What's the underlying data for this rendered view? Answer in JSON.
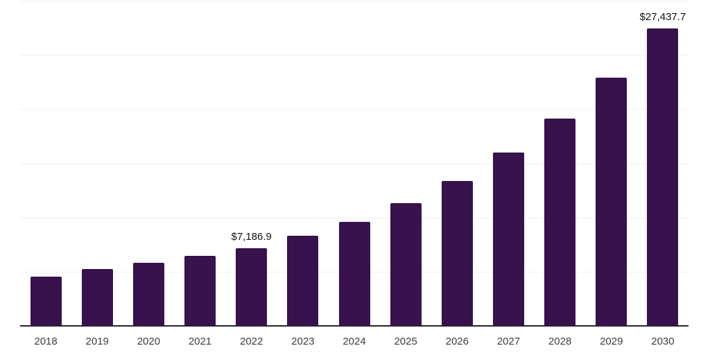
{
  "chart_data": {
    "type": "bar",
    "title": "",
    "xlabel": "",
    "ylabel": "",
    "categories": [
      "2018",
      "2019",
      "2020",
      "2021",
      "2022",
      "2023",
      "2024",
      "2025",
      "2026",
      "2027",
      "2028",
      "2029",
      "2030"
    ],
    "values": [
      4560,
      5270,
      5800,
      6440,
      7186.9,
      8290,
      9600,
      11340,
      13400,
      15960,
      19100,
      22870,
      27437.7
    ],
    "data_labels": {
      "2022": "$7,186.9",
      "2030": "$27,437.7"
    },
    "ylim": [
      0,
      30000
    ],
    "gridline_step": 5000,
    "grid": "horizontal-only",
    "legend": "none",
    "y_tick_labels_visible": false,
    "colors": {
      "bar": "#37124d",
      "axis_line": "#262626",
      "gridline": "#f0f0f1",
      "tick_label": "#3d3d3d",
      "value_label": "#111111",
      "background": "#ffffff"
    }
  }
}
